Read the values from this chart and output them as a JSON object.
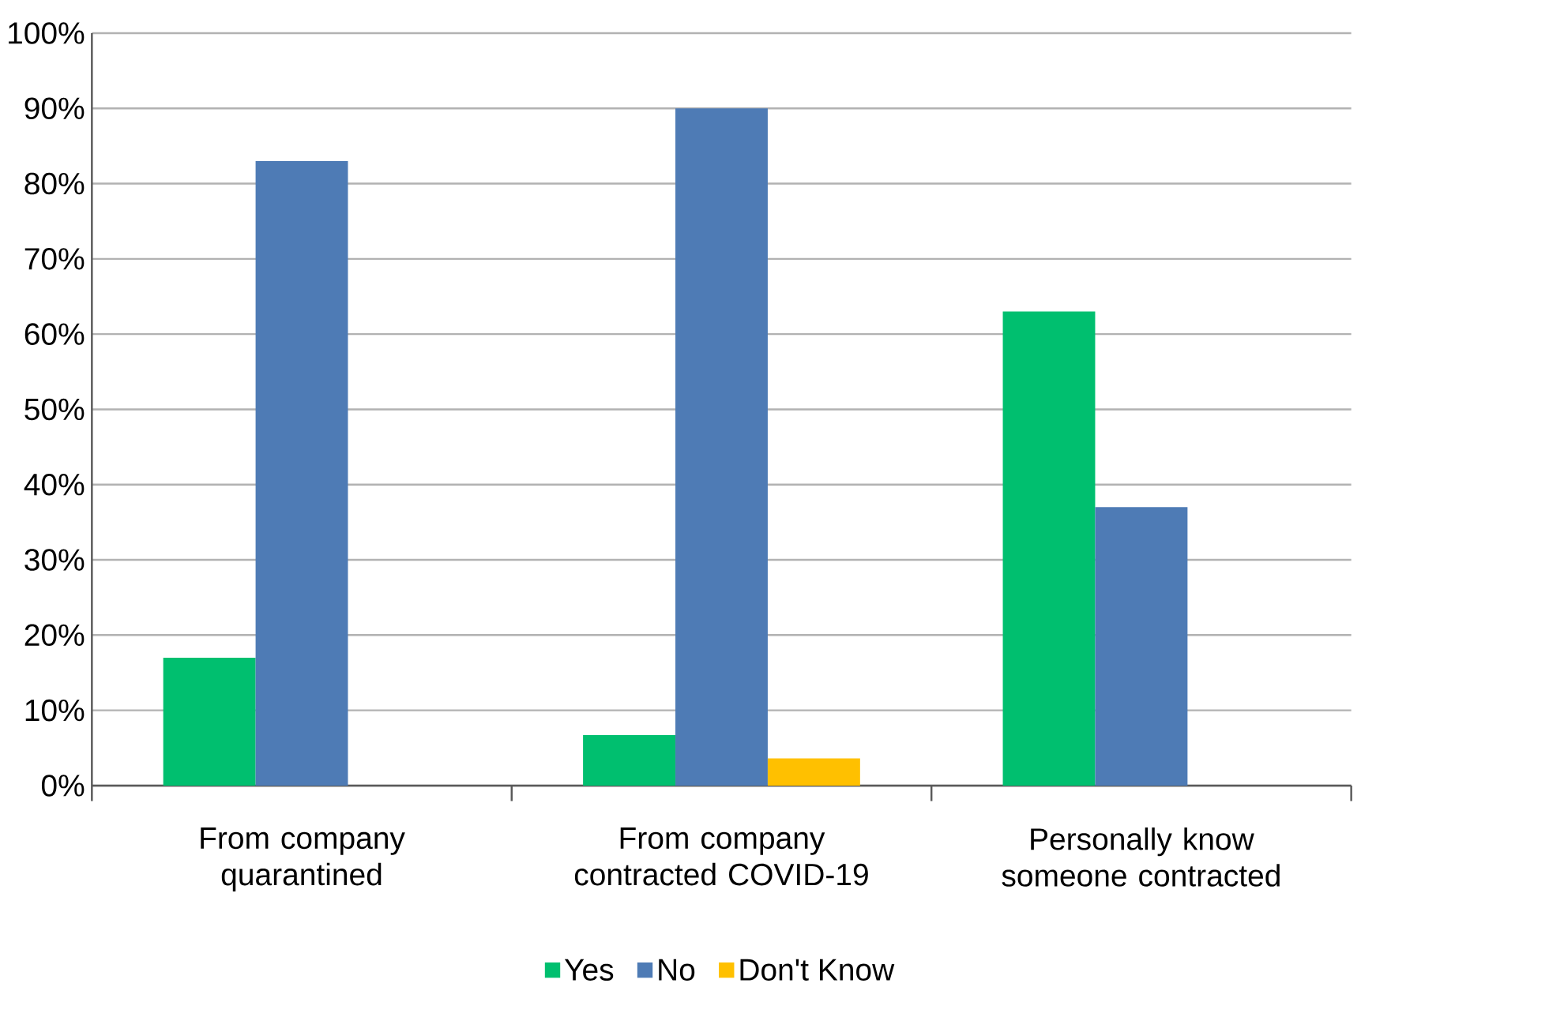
{
  "chart_data": {
    "type": "bar",
    "categories": [
      "From company quarantined",
      "From company contracted COVID-19",
      "Personally know someone contracted"
    ],
    "series": [
      {
        "name": "Yes",
        "color": "#00bf6f",
        "values": [
          17,
          6.7,
          63
        ]
      },
      {
        "name": "No",
        "color": "#4e7bb5",
        "values": [
          83,
          90,
          37
        ]
      },
      {
        "name": "Don't Know",
        "color": "#ffc000",
        "values": [
          null,
          3.6,
          null
        ]
      }
    ],
    "ylim": [
      0,
      100
    ],
    "yticks": [
      {
        "value": 0,
        "label": "0%"
      },
      {
        "value": 10,
        "label": "10%"
      },
      {
        "value": 20,
        "label": "20%"
      },
      {
        "value": 30,
        "label": "30%"
      },
      {
        "value": 40,
        "label": "40%"
      },
      {
        "value": 50,
        "label": "50%"
      },
      {
        "value": 60,
        "label": "60%"
      },
      {
        "value": 70,
        "label": "70%"
      },
      {
        "value": 80,
        "label": "80%"
      },
      {
        "value": 90,
        "label": "90%"
      },
      {
        "value": 100,
        "label": "100%"
      }
    ],
    "grid": "y",
    "legend": "bottom"
  }
}
